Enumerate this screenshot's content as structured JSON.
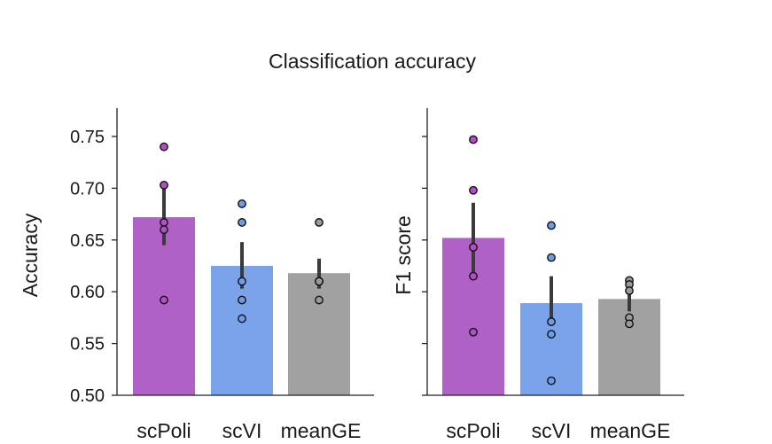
{
  "title": "Classification accuracy",
  "colors": {
    "scPoli": "#b061c6",
    "scVI": "#7aa3ea",
    "meanGE": "#a1a1a1",
    "dot_scPoli": "#b24fc8",
    "dot_scVI": "#6f9bea",
    "dot_meanGE": "#9a9a9a",
    "errorbar": "#3a3a3a",
    "axis": "#222222"
  },
  "chart_data": [
    {
      "type": "bar",
      "ylabel": "Accuracy",
      "xlabel": "",
      "categories": [
        "scPoli",
        "scVI",
        "meanGE"
      ],
      "values": [
        0.672,
        0.625,
        0.618
      ],
      "error_low": [
        0.645,
        0.603,
        0.603
      ],
      "error_high": [
        0.7,
        0.648,
        0.632
      ],
      "points": [
        [
          0.74,
          0.703,
          0.667,
          0.66,
          0.592
        ],
        [
          0.685,
          0.667,
          0.61,
          0.592,
          0.574
        ],
        [
          0.667,
          0.61,
          0.61,
          0.61,
          0.592
        ]
      ],
      "ylim": [
        0.5,
        0.775
      ],
      "yticks": [
        0.5,
        0.55,
        0.6,
        0.65,
        0.7,
        0.75
      ],
      "ytick_labels": [
        "0.50",
        "0.55",
        "0.60",
        "0.65",
        "0.70",
        "0.75"
      ]
    },
    {
      "type": "bar",
      "ylabel": "F1 score",
      "xlabel": "",
      "categories": [
        "scPoli",
        "scVI",
        "meanGE"
      ],
      "values": [
        0.652,
        0.589,
        0.593
      ],
      "error_low": [
        0.617,
        0.569,
        0.581
      ],
      "error_high": [
        0.686,
        0.615,
        0.605
      ],
      "points": [
        [
          0.747,
          0.698,
          0.643,
          0.615,
          0.561
        ],
        [
          0.664,
          0.633,
          0.571,
          0.559,
          0.514
        ],
        [
          0.611,
          0.607,
          0.601,
          0.575,
          0.569
        ]
      ],
      "ylim": [
        0.5,
        0.775
      ],
      "yticks": [
        0.5,
        0.55,
        0.6,
        0.65,
        0.7,
        0.75
      ],
      "ytick_labels": [
        "",
        "",
        "",
        "",
        "",
        ""
      ]
    }
  ]
}
